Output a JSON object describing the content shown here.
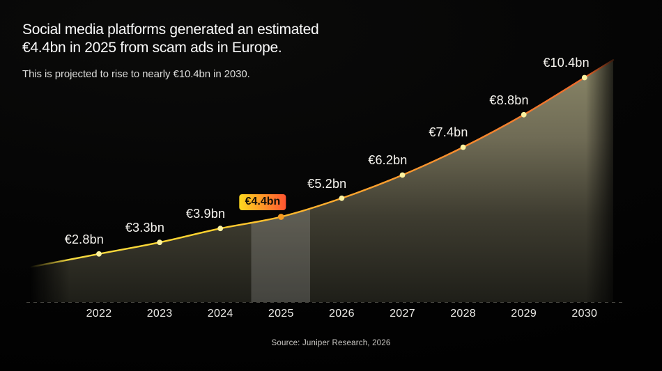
{
  "header": {
    "title_line1": "Social media platforms generated an estimated",
    "title_line2": "€4.4bn in 2025 from scam ads in Europe.",
    "subtitle": "This is projected to rise to nearly €10.4bn in 2030."
  },
  "footer": {
    "source": "Source: Juniper Research, 2026"
  },
  "chart_data": {
    "type": "area",
    "title": "Social media platforms generated an estimated €4.4bn in 2025 from scam ads in Europe.",
    "subtitle": "This is projected to rise to nearly €10.4bn in 2030.",
    "categories": [
      "2022",
      "2023",
      "2024",
      "2025",
      "2026",
      "2027",
      "2028",
      "2029",
      "2030"
    ],
    "values": [
      2.8,
      3.3,
      3.9,
      4.4,
      5.2,
      6.2,
      7.4,
      8.8,
      10.4
    ],
    "value_labels": [
      "€2.8bn",
      "€3.3bn",
      "€3.9bn",
      "€4.4bn",
      "€5.2bn",
      "€6.2bn",
      "€7.4bn",
      "€8.8bn",
      "€10.4bn"
    ],
    "unit": "€bn",
    "ylim": [
      0,
      11
    ],
    "legend": "none",
    "grid": "off",
    "x_axis": {
      "baseline_style": "dashed"
    },
    "highlight": {
      "category": "2025",
      "index": 3,
      "label": "€4.4bn"
    },
    "colors": {
      "line_gradient": [
        "#f0dd4a",
        "#ffd42f",
        "#ffa82e",
        "#f47e2d",
        "#e95d2a"
      ],
      "dot": "#fbf2a0",
      "highlight_dot": "#f59b21",
      "badge_from": "#ffd91f",
      "badge_to": "#ff5430",
      "area_top": "#8a8768",
      "area_bottom": "#1e1e18",
      "baseline": "#45443f",
      "highlight_band": "#ffffff"
    }
  }
}
